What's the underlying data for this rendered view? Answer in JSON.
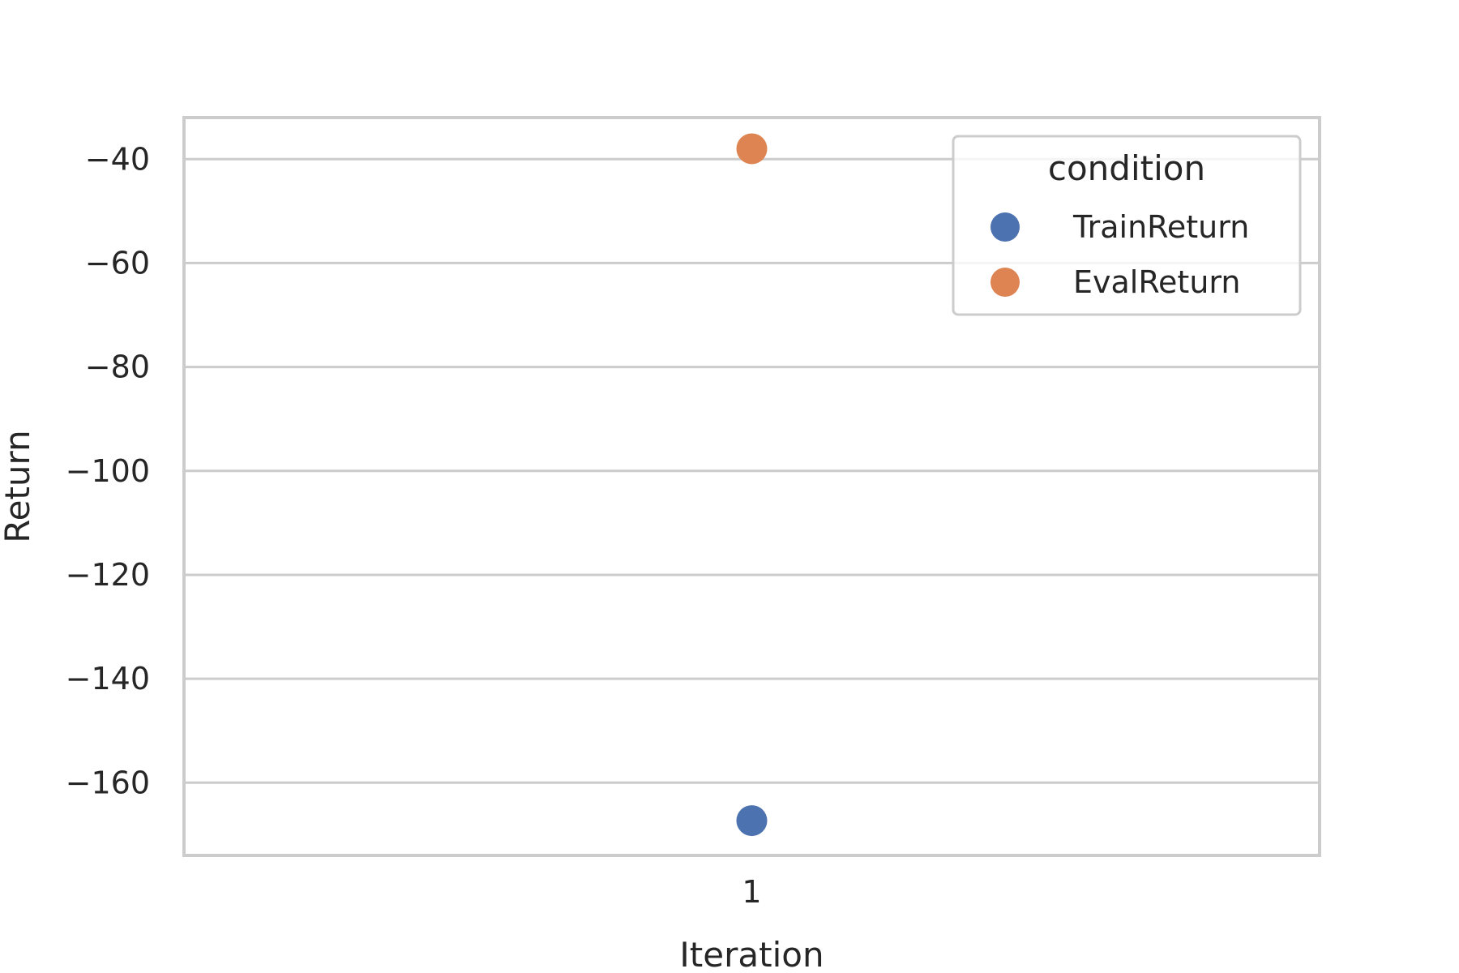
{
  "chart_data": {
    "type": "scatter",
    "xlabel": "Iteration",
    "ylabel": "Return",
    "categories": [
      "1"
    ],
    "ylim": [
      -174,
      -32
    ],
    "yticks": [
      -40,
      -60,
      -80,
      -100,
      -120,
      -140,
      -160
    ],
    "ytick_labels": [
      "−40",
      "−60",
      "−80",
      "−100",
      "−120",
      "−140",
      "−160"
    ],
    "grid": "horizontal",
    "legend": {
      "title": "condition",
      "placement": "top-right"
    },
    "series": [
      {
        "name": "TrainReturn",
        "color": "#4c72b0",
        "values": [
          -167.3
        ]
      },
      {
        "name": "EvalReturn",
        "color": "#dd8452",
        "values": [
          -38.0
        ]
      }
    ]
  }
}
